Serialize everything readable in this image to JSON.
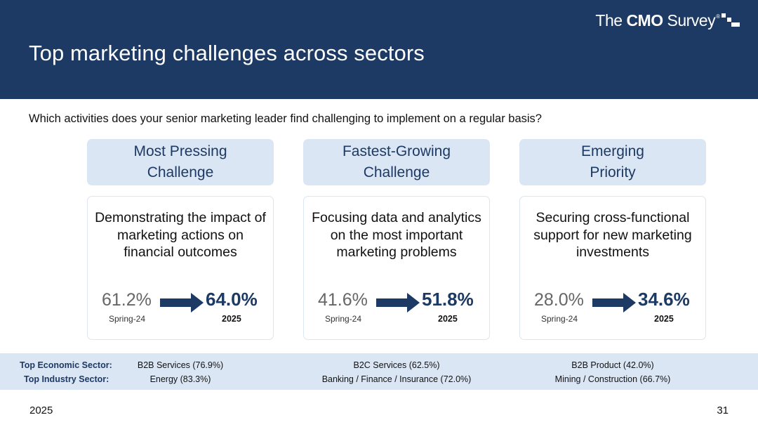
{
  "header": {
    "title": "Top marketing challenges across sectors",
    "logo": {
      "prefix": "The ",
      "bold": "CMO",
      "suffix": " Survey",
      "registered": "®"
    }
  },
  "question": "Which activities does your senior marketing leader find challenging to implement on a regular basis?",
  "columns": [
    {
      "heading_line1": "Most Pressing",
      "heading_line2": "Challenge",
      "description": "Demonstrating the impact of marketing actions on financial outcomes",
      "previous_value": "61.2%",
      "previous_label": "Spring-24",
      "current_value": "64.0%",
      "current_label": "2025",
      "top_economic_sector": "B2B Services (76.9%)",
      "top_industry_sector": "Energy (83.3%)"
    },
    {
      "heading_line1": "Fastest-Growing",
      "heading_line2": "Challenge",
      "description": "Focusing data and analytics on the most important marketing problems",
      "previous_value": "41.6%",
      "previous_label": "Spring-24",
      "current_value": "51.8%",
      "current_label": "2025",
      "top_economic_sector": "B2C Services (62.5%)",
      "top_industry_sector": "Banking / Finance / Insurance (72.0%)"
    },
    {
      "heading_line1": "Emerging",
      "heading_line2": "Priority",
      "description": "Securing cross-functional support for new marketing investments",
      "previous_value": "28.0%",
      "previous_label": "Spring-24",
      "current_value": "34.6%",
      "current_label": "2025",
      "top_economic_sector": "B2B Product (42.0%)",
      "top_industry_sector": "Mining / Construction (66.7%)"
    }
  ],
  "sectors": {
    "economic_label": "Top Economic Sector:",
    "industry_label": "Top Industry Sector:"
  },
  "footer": {
    "year": "2025",
    "page_number": "31"
  },
  "colors": {
    "navy": "#1c3a63",
    "light_blue": "#dbe6f4"
  }
}
